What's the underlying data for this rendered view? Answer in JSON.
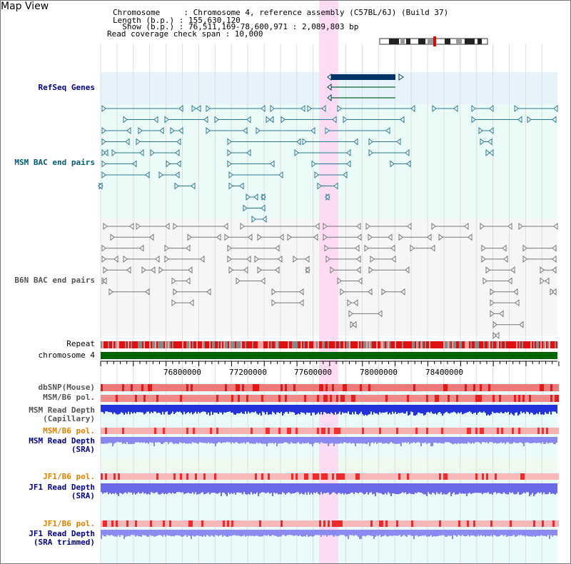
{
  "header": {
    "title": "Map View",
    "info_lines": [
      "Chromosome     : Chromosome 4, reference assembly (C57BL/6J) (Build 37)",
      "Length (b.p.) : 155,630,120",
      "  Show (b.p.) : 76,511,169-78,600,971 : 2,089,803 bp",
      "Read coverage check span : 10,000"
    ]
  },
  "tracks": {
    "refseq": "RefSeq Genes",
    "msm_bac": "MSM BAC end pairs",
    "b6n_bac": "B6N BAC end pairs",
    "repeat": "Repeat",
    "chromosome": "chromosome 4",
    "dbsnp": "dbSNP(Mouse)",
    "msm_b6_pol_1": "MSM/B6 pol.",
    "msm_depth_cap_1": "MSM Read Depth",
    "msm_depth_cap_2": "(Capillary)",
    "msm_b6_pol_2": "MSM/B6 pol.",
    "msm_depth_sra_1": "MSM Read Depth",
    "msm_depth_sra_2": "(SRA)",
    "jf1_b6_pol_1": "JF1/B6 pol.",
    "jf1_depth_sra_1": "JF1 Read Depth",
    "jf1_depth_sra_2": "(SRA)",
    "jf1_b6_pol_2": "JF1/B6 pol.",
    "jf1_depth_trim_1": "JF1 Read Depth",
    "jf1_depth_trim_2": "(SRA trimmed)"
  },
  "axis": {
    "ticks": [
      "76800000",
      "77200000",
      "77600000",
      "78000000",
      "78400000"
    ]
  },
  "colors": {
    "refseq_bg": "#e6f3fb",
    "msm_bg": "#eafbf8",
    "b6n_bg": "#f6f6f8",
    "highlight": "#ffd6f2",
    "gene": "#003366",
    "msm_feature": "#2a7a94",
    "b6n_feature": "#777777",
    "chromosome_bar": "#006400",
    "depth_blue": "#2233dd",
    "depth_light": "#8888ee"
  }
}
